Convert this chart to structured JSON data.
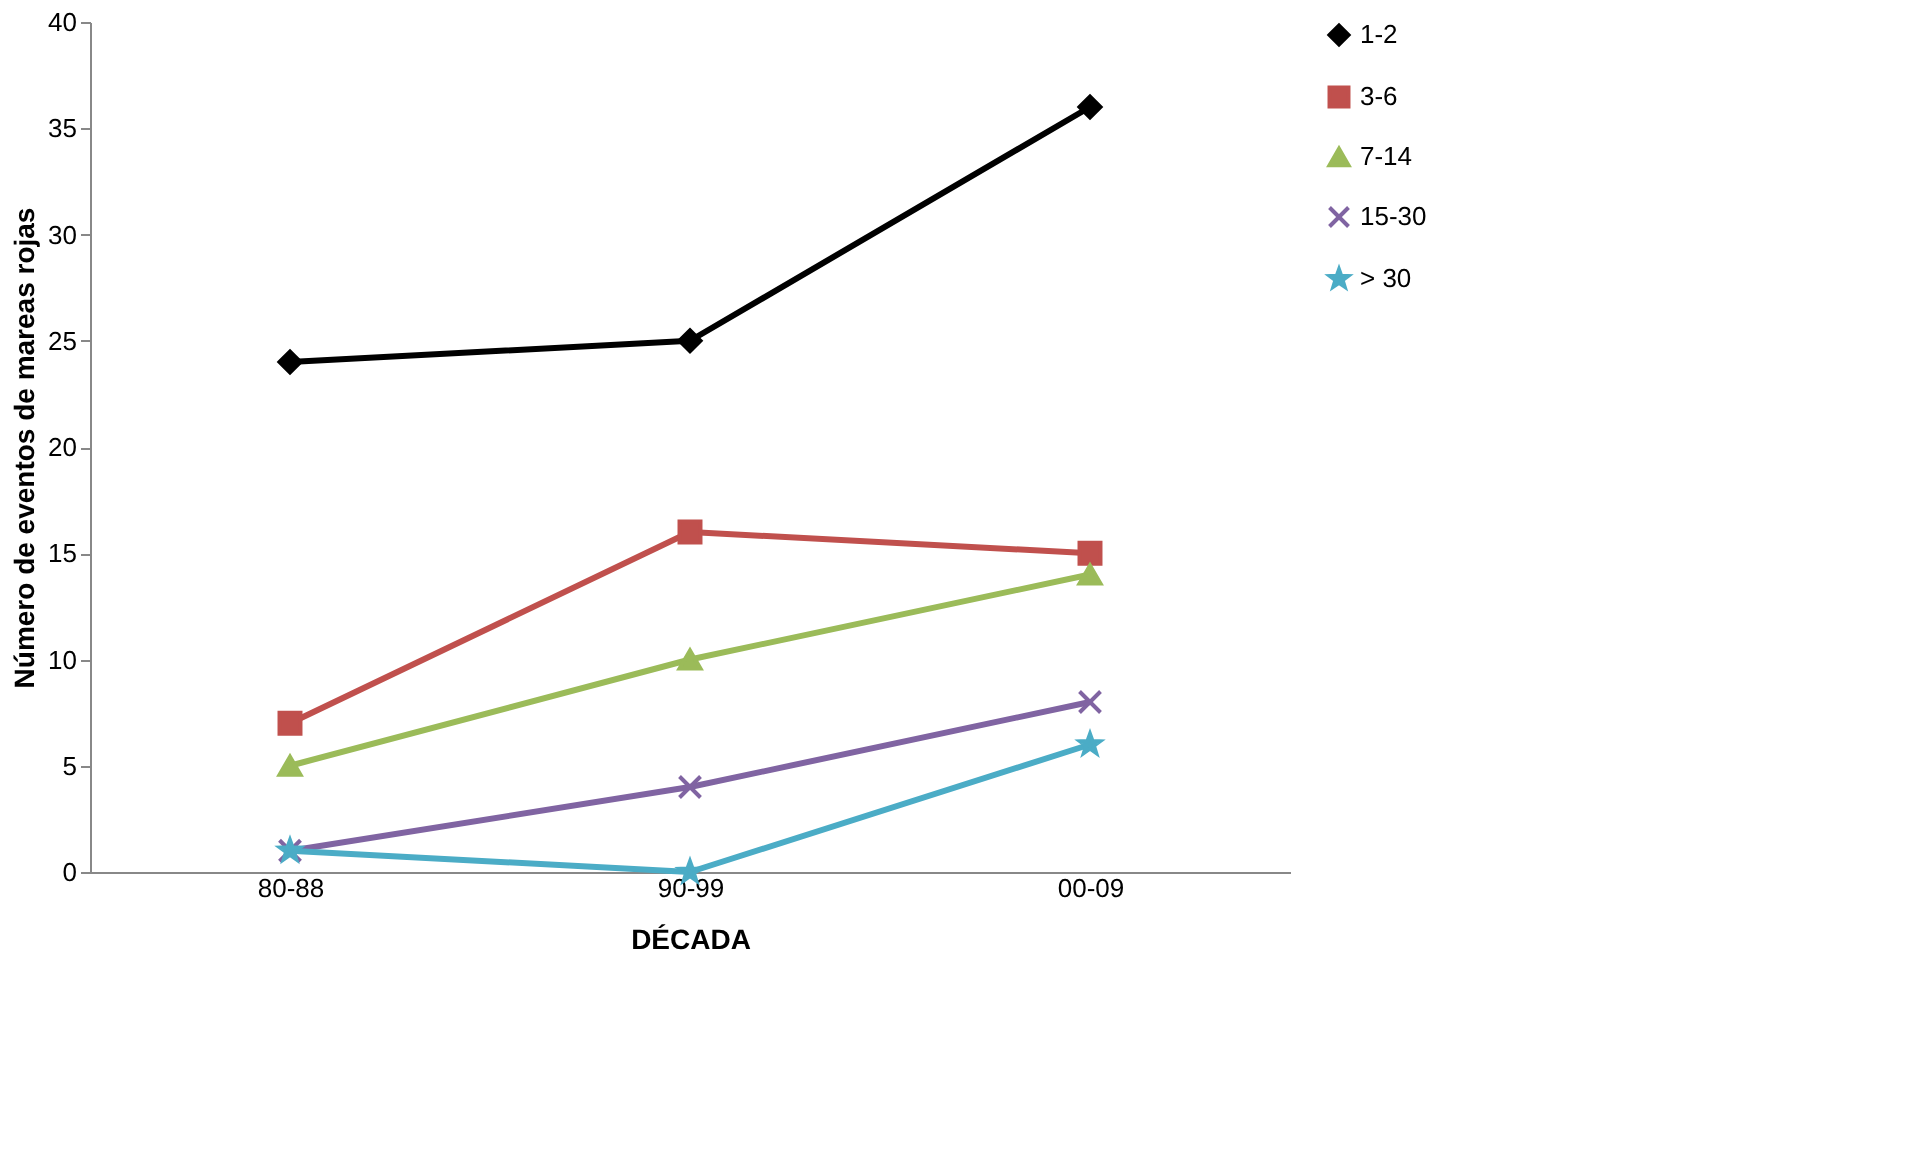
{
  "chart_data": {
    "type": "line",
    "xlabel": "DÉCADA",
    "ylabel": "Número de eventos  de mareas rojas",
    "categories": [
      "80-88",
      "90-99",
      "00-09"
    ],
    "series": [
      {
        "name": "1-2",
        "color": "#000000",
        "marker": "diamond",
        "values": [
          24,
          25,
          36
        ]
      },
      {
        "name": "3-6",
        "color": "#c0504d",
        "marker": "square",
        "values": [
          7,
          16,
          15
        ]
      },
      {
        "name": "7-14",
        "color": "#9bbb59",
        "marker": "triangle",
        "values": [
          5,
          10,
          14
        ]
      },
      {
        "name": "15-30",
        "color": "#8064a2",
        "marker": "cross",
        "values": [
          1,
          4,
          8
        ]
      },
      {
        "name": "> 30",
        "color": "#4bacc6",
        "marker": "star",
        "values": [
          1,
          0,
          6
        ]
      }
    ],
    "ylim": [
      0,
      40
    ],
    "yticks": [
      0,
      5,
      10,
      15,
      20,
      25,
      30,
      35,
      40
    ],
    "grid": false,
    "legend": "right",
    "line_style": "solid"
  }
}
